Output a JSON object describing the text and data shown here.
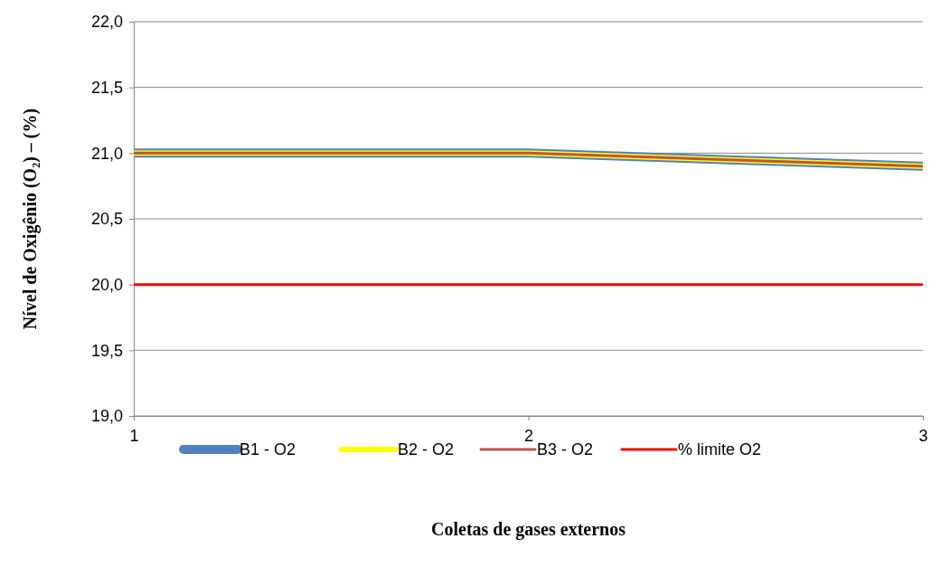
{
  "chart_data": {
    "type": "line",
    "xlabel": "Coletas de gases externos",
    "ylabel": "Nível de Oxigênio (O₂) – (%)",
    "x": [
      1,
      2,
      3
    ],
    "xlim": [
      1,
      3
    ],
    "xticks": [
      1,
      2,
      3
    ],
    "ylim": [
      19,
      22
    ],
    "yticks": [
      {
        "value": 19,
        "label": "19,0"
      },
      {
        "value": 19.5,
        "label": "19,5"
      },
      {
        "value": 20,
        "label": "20,0"
      },
      {
        "value": 20.5,
        "label": "20,5"
      },
      {
        "value": 21,
        "label": "21,0"
      },
      {
        "value": 21.5,
        "label": "21,5"
      },
      {
        "value": 22,
        "label": "22,0"
      }
    ],
    "grid": "y",
    "legend": "bottom",
    "marker": "none",
    "line_style": "solid",
    "series": [
      {
        "name": "B1 - O2",
        "color": "#4f81bd",
        "values": [
          21.0,
          21.0,
          20.9
        ]
      },
      {
        "name": "B2 - O2",
        "color": "#ffff00",
        "values": [
          21.0,
          21.0,
          20.9
        ]
      },
      {
        "name": "B3 - O2",
        "color": "#c0504d",
        "values": [
          21.0,
          21.0,
          20.9
        ]
      },
      {
        "name": "% limite O2",
        "color": "#ff0000",
        "values": [
          20,
          20,
          20
        ]
      }
    ]
  }
}
